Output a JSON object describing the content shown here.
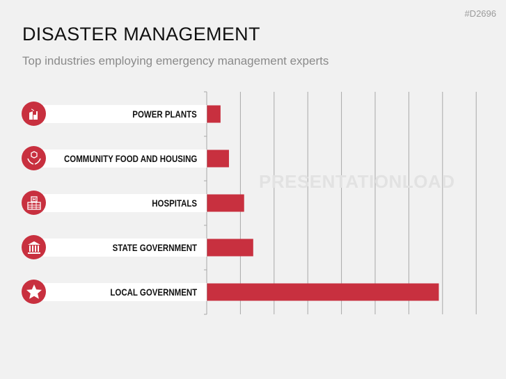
{
  "header": {
    "code": "#D2696",
    "title": "DISASTER MANAGEMENT",
    "subtitle": "Top industries employing emergency management experts"
  },
  "watermark": "PRESENTATIONLOAD",
  "colors": {
    "bar": "#c8303f",
    "grid": "#a8a8a8"
  },
  "chart_data": {
    "type": "bar",
    "orientation": "horizontal",
    "categories": [
      "POWER PLANTS",
      "COMMUNITY FOOD AND HOUSING",
      "HOSPITALS",
      "STATE GOVERNMENT",
      "LOCAL GOVERNMENT"
    ],
    "icons": [
      "power-plant-icon",
      "food-box-hands-icon",
      "hospital-icon",
      "government-building-icon",
      "star-icon"
    ],
    "values": [
      0.4,
      0.65,
      1.1,
      1.37,
      6.88
    ],
    "xlim": [
      0,
      8
    ],
    "grid": true,
    "title": "",
    "xlabel": "",
    "ylabel": ""
  }
}
